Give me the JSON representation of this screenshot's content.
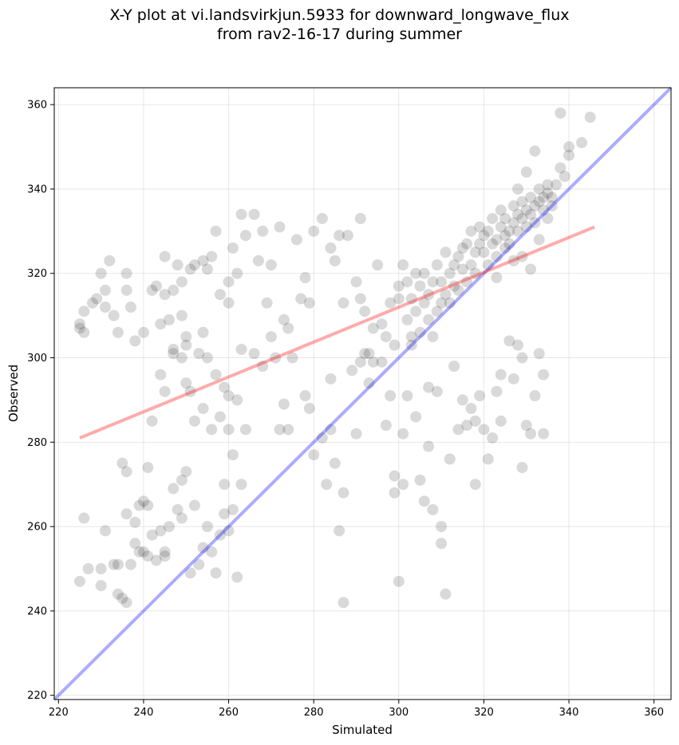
{
  "chart_data": {
    "type": "scatter",
    "title_line1": "X-Y plot at vi.landsvirkjun.5933 for downward_longwave_flux",
    "title_line2": "from rav2-16-17 during summer",
    "xlabel": "Simulated",
    "ylabel": "Observed",
    "xlim": [
      219,
      364
    ],
    "ylim": [
      219,
      364
    ],
    "xticks": [
      220,
      240,
      260,
      280,
      300,
      320,
      340,
      360
    ],
    "yticks": [
      220,
      240,
      260,
      280,
      300,
      320,
      340,
      360
    ],
    "grid": true,
    "point_color": "#000000",
    "point_opacity": 0.15,
    "identity_line": {
      "color": "#0000ff",
      "x": [
        219,
        364
      ],
      "y": [
        219,
        364
      ]
    },
    "fit_line": {
      "color": "#ff0000",
      "x": [
        225,
        346
      ],
      "y": [
        281,
        331
      ]
    },
    "points": [
      [
        225,
        308
      ],
      [
        225,
        307
      ],
      [
        226,
        311
      ],
      [
        226,
        306
      ],
      [
        228,
        313
      ],
      [
        229,
        314
      ],
      [
        230,
        320
      ],
      [
        231,
        316
      ],
      [
        231,
        312
      ],
      [
        232,
        323
      ],
      [
        233,
        310
      ],
      [
        234,
        306
      ],
      [
        236,
        316
      ],
      [
        236,
        320
      ],
      [
        237,
        312
      ],
      [
        238,
        304
      ],
      [
        240,
        306
      ],
      [
        242,
        316
      ],
      [
        243,
        317
      ],
      [
        244,
        308
      ],
      [
        245,
        315
      ],
      [
        245,
        324
      ],
      [
        246,
        309
      ],
      [
        247,
        302
      ],
      [
        247,
        316
      ],
      [
        248,
        322
      ],
      [
        249,
        310
      ],
      [
        249,
        318
      ],
      [
        250,
        305
      ],
      [
        251,
        321
      ],
      [
        252,
        322
      ],
      [
        254,
        323
      ],
      [
        254,
        306
      ],
      [
        255,
        321
      ],
      [
        256,
        324
      ],
      [
        257,
        330
      ],
      [
        258,
        315
      ],
      [
        260,
        313
      ],
      [
        260,
        318
      ],
      [
        261,
        326
      ],
      [
        262,
        320
      ],
      [
        263,
        334
      ],
      [
        264,
        329
      ],
      [
        266,
        334
      ],
      [
        267,
        323
      ],
      [
        268,
        330
      ],
      [
        269,
        313
      ],
      [
        270,
        322
      ],
      [
        272,
        331
      ],
      [
        273,
        309
      ],
      [
        274,
        307
      ],
      [
        276,
        328
      ],
      [
        277,
        314
      ],
      [
        278,
        319
      ],
      [
        279,
        313
      ],
      [
        280,
        330
      ],
      [
        282,
        333
      ],
      [
        284,
        326
      ],
      [
        285,
        323
      ],
      [
        286,
        329
      ],
      [
        287,
        313
      ],
      [
        288,
        329
      ],
      [
        290,
        318
      ],
      [
        291,
        314
      ],
      [
        291,
        333
      ],
      [
        292,
        311
      ],
      [
        293,
        301
      ],
      [
        294,
        307
      ],
      [
        295,
        322
      ],
      [
        296,
        308
      ],
      [
        297,
        305
      ],
      [
        298,
        313
      ],
      [
        299,
        303
      ],
      [
        300,
        317
      ],
      [
        300,
        314
      ],
      [
        301,
        322
      ],
      [
        302,
        318
      ],
      [
        302,
        309
      ],
      [
        303,
        305
      ],
      [
        303,
        314
      ],
      [
        304,
        320
      ],
      [
        304,
        311
      ],
      [
        305,
        317
      ],
      [
        305,
        306
      ],
      [
        306,
        313
      ],
      [
        306,
        320
      ],
      [
        307,
        309
      ],
      [
        307,
        315
      ],
      [
        308,
        318
      ],
      [
        308,
        305
      ],
      [
        309,
        311
      ],
      [
        309,
        322
      ],
      [
        310,
        318
      ],
      [
        310,
        313
      ],
      [
        311,
        315
      ],
      [
        311,
        325
      ],
      [
        312,
        320
      ],
      [
        312,
        313
      ],
      [
        313,
        317
      ],
      [
        313,
        322
      ],
      [
        314,
        324
      ],
      [
        314,
        316
      ],
      [
        315,
        321
      ],
      [
        315,
        326
      ],
      [
        316,
        318
      ],
      [
        316,
        327
      ],
      [
        317,
        322
      ],
      [
        317,
        330
      ],
      [
        318,
        325
      ],
      [
        318,
        320
      ],
      [
        319,
        327
      ],
      [
        319,
        331
      ],
      [
        320,
        325
      ],
      [
        320,
        329
      ],
      [
        321,
        322
      ],
      [
        321,
        330
      ],
      [
        322,
        327
      ],
      [
        322,
        333
      ],
      [
        323,
        328
      ],
      [
        323,
        324
      ],
      [
        324,
        331
      ],
      [
        324,
        335
      ],
      [
        325,
        329
      ],
      [
        325,
        333
      ],
      [
        326,
        330
      ],
      [
        326,
        327
      ],
      [
        327,
        332
      ],
      [
        327,
        336
      ],
      [
        328,
        330
      ],
      [
        328,
        334
      ],
      [
        329,
        333
      ],
      [
        329,
        337
      ],
      [
        330,
        331
      ],
      [
        330,
        335
      ],
      [
        331,
        334
      ],
      [
        331,
        338
      ],
      [
        332,
        336
      ],
      [
        332,
        332
      ],
      [
        333,
        337
      ],
      [
        333,
        340
      ],
      [
        334,
        338
      ],
      [
        334,
        335
      ],
      [
        335,
        339
      ],
      [
        335,
        341
      ],
      [
        336,
        338
      ],
      [
        336,
        336
      ],
      [
        337,
        341
      ],
      [
        338,
        345
      ],
      [
        338,
        358
      ],
      [
        339,
        343
      ],
      [
        340,
        350
      ],
      [
        340,
        348
      ],
      [
        343,
        351
      ],
      [
        345,
        357
      ],
      [
        329,
        324
      ],
      [
        331,
        321
      ],
      [
        327,
        323
      ],
      [
        325,
        326
      ],
      [
        323,
        319
      ],
      [
        333,
        328
      ],
      [
        335,
        333
      ],
      [
        328,
        340
      ],
      [
        330,
        344
      ],
      [
        332,
        349
      ],
      [
        225,
        247
      ],
      [
        226,
        262
      ],
      [
        227,
        250
      ],
      [
        230,
        250
      ],
      [
        230,
        246
      ],
      [
        231,
        259
      ],
      [
        233,
        251
      ],
      [
        234,
        251
      ],
      [
        234,
        244
      ],
      [
        235,
        243
      ],
      [
        236,
        242
      ],
      [
        236,
        263
      ],
      [
        237,
        251
      ],
      [
        238,
        256
      ],
      [
        238,
        261
      ],
      [
        239,
        254
      ],
      [
        239,
        265
      ],
      [
        240,
        254
      ],
      [
        240,
        266
      ],
      [
        241,
        265
      ],
      [
        241,
        253
      ],
      [
        242,
        258
      ],
      [
        243,
        252
      ],
      [
        244,
        259
      ],
      [
        245,
        253
      ],
      [
        245,
        254
      ],
      [
        246,
        260
      ],
      [
        247,
        269
      ],
      [
        248,
        264
      ],
      [
        249,
        271
      ],
      [
        249,
        262
      ],
      [
        250,
        273
      ],
      [
        251,
        249
      ],
      [
        252,
        265
      ],
      [
        253,
        251
      ],
      [
        254,
        255
      ],
      [
        255,
        260
      ],
      [
        256,
        254
      ],
      [
        257,
        249
      ],
      [
        258,
        258
      ],
      [
        259,
        270
      ],
      [
        259,
        263
      ],
      [
        260,
        259
      ],
      [
        261,
        264
      ],
      [
        262,
        248
      ],
      [
        263,
        270
      ],
      [
        235,
        275
      ],
      [
        236,
        273
      ],
      [
        241,
        274
      ],
      [
        242,
        285
      ],
      [
        244,
        296
      ],
      [
        245,
        292
      ],
      [
        247,
        301
      ],
      [
        249,
        300
      ],
      [
        250,
        303
      ],
      [
        250,
        294
      ],
      [
        251,
        292
      ],
      [
        252,
        285
      ],
      [
        253,
        301
      ],
      [
        254,
        288
      ],
      [
        255,
        300
      ],
      [
        256,
        283
      ],
      [
        257,
        296
      ],
      [
        258,
        286
      ],
      [
        259,
        293
      ],
      [
        260,
        283
      ],
      [
        260,
        291
      ],
      [
        261,
        277
      ],
      [
        262,
        290
      ],
      [
        263,
        302
      ],
      [
        264,
        283
      ],
      [
        266,
        301
      ],
      [
        268,
        298
      ],
      [
        270,
        305
      ],
      [
        271,
        300
      ],
      [
        272,
        283
      ],
      [
        273,
        289
      ],
      [
        274,
        283
      ],
      [
        275,
        300
      ],
      [
        278,
        291
      ],
      [
        279,
        288
      ],
      [
        280,
        277
      ],
      [
        282,
        281
      ],
      [
        283,
        270
      ],
      [
        284,
        295
      ],
      [
        284,
        283
      ],
      [
        285,
        275
      ],
      [
        286,
        259
      ],
      [
        287,
        268
      ],
      [
        287,
        242
      ],
      [
        289,
        297
      ],
      [
        290,
        282
      ],
      [
        291,
        299
      ],
      [
        292,
        301
      ],
      [
        293,
        294
      ],
      [
        294,
        299
      ],
      [
        296,
        299
      ],
      [
        297,
        284
      ],
      [
        298,
        291
      ],
      [
        299,
        268
      ],
      [
        299,
        272
      ],
      [
        300,
        247
      ],
      [
        301,
        270
      ],
      [
        301,
        282
      ],
      [
        302,
        291
      ],
      [
        303,
        303
      ],
      [
        304,
        286
      ],
      [
        305,
        271
      ],
      [
        306,
        266
      ],
      [
        307,
        279
      ],
      [
        307,
        293
      ],
      [
        308,
        264
      ],
      [
        309,
        292
      ],
      [
        310,
        260
      ],
      [
        310,
        256
      ],
      [
        311,
        244
      ],
      [
        312,
        276
      ],
      [
        313,
        298
      ],
      [
        314,
        283
      ],
      [
        315,
        290
      ],
      [
        316,
        284
      ],
      [
        317,
        288
      ],
      [
        318,
        285
      ],
      [
        318,
        270
      ],
      [
        319,
        291
      ],
      [
        320,
        283
      ],
      [
        321,
        276
      ],
      [
        322,
        281
      ],
      [
        323,
        292
      ],
      [
        324,
        296
      ],
      [
        324,
        285
      ],
      [
        326,
        304
      ],
      [
        327,
        295
      ],
      [
        328,
        303
      ],
      [
        329,
        274
      ],
      [
        329,
        300
      ],
      [
        330,
        284
      ],
      [
        331,
        282
      ],
      [
        332,
        291
      ],
      [
        333,
        301
      ],
      [
        334,
        296
      ],
      [
        334,
        282
      ]
    ]
  }
}
